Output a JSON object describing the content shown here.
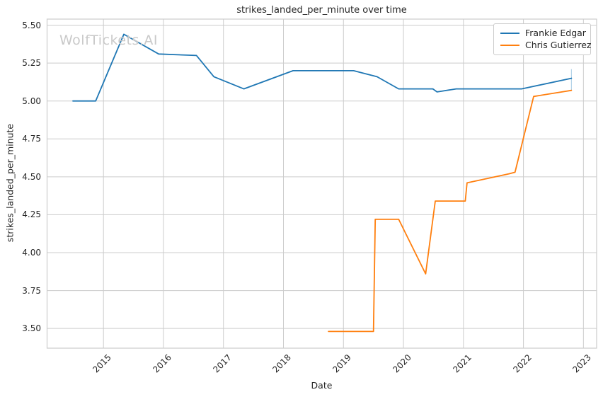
{
  "watermark": {
    "text": "WolfTickets.AI",
    "color": "#c9c9c9"
  },
  "colors": {
    "background": "#ffffff",
    "grid": "#cccccc",
    "text": "#262626"
  },
  "chart_data": {
    "type": "line",
    "title": "strikes_landed_per_minute over time",
    "xlabel": "Date",
    "ylabel": "strikes_landed_per_minute",
    "grid": true,
    "legend_position": "top-right",
    "xlim": [
      2014.06,
      2023.22
    ],
    "ylim": [
      3.37,
      5.54
    ],
    "xticks": [
      2015,
      2016,
      2017,
      2018,
      2019,
      2020,
      2021,
      2022,
      2023
    ],
    "yticks": [
      3.5,
      3.75,
      4.0,
      4.25,
      4.5,
      4.75,
      5.0,
      5.25,
      5.5
    ],
    "series": [
      {
        "name": "Frankie Edgar",
        "color": "#1f77b4",
        "x": [
          2014.49,
          2014.87,
          2015.34,
          2015.92,
          2016.55,
          2016.84,
          2017.34,
          2018.16,
          2019.17,
          2019.56,
          2019.92,
          2020.49,
          2020.56,
          2020.88,
          2021.97,
          2022.8
        ],
        "y": [
          5.0,
          5.0,
          5.44,
          5.31,
          5.3,
          5.16,
          5.08,
          5.2,
          5.2,
          5.16,
          5.08,
          5.08,
          5.06,
          5.08,
          5.08,
          5.15
        ]
      },
      {
        "name": "Chris Gutierrez",
        "color": "#ff7f0e",
        "x": [
          2018.75,
          2019.5,
          2019.53,
          2019.92,
          2020.37,
          2020.53,
          2021.03,
          2021.06,
          2021.76,
          2021.86,
          2022.17,
          2022.8
        ],
        "y": [
          3.48,
          3.48,
          4.22,
          4.22,
          3.86,
          4.34,
          4.34,
          4.46,
          4.52,
          4.53,
          5.03,
          5.07
        ]
      }
    ],
    "end_marker": {
      "x": 2022.8,
      "y_top": 5.21,
      "y_bottom": 5.07,
      "color": "#a9cde6"
    }
  }
}
